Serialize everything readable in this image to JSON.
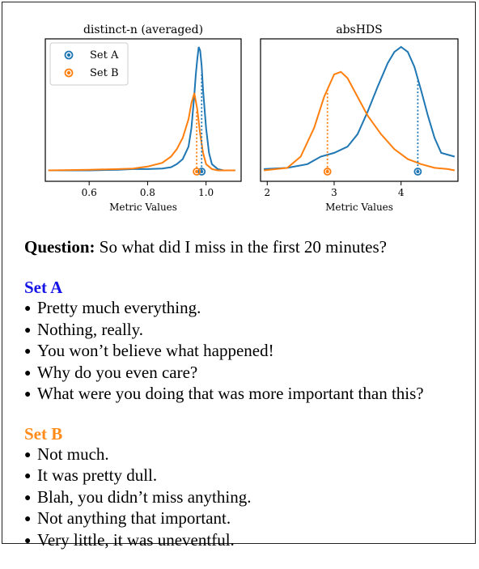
{
  "colors": {
    "set_a": "#1f77b4",
    "set_b": "#ff7f0e",
    "set_a_heading": "#1414e6",
    "set_b_heading": "#ff8c1a"
  },
  "chart_data": [
    {
      "type": "area",
      "title": "distinct-n (averaged)",
      "xlabel": "Metric Values",
      "ylabel": "",
      "xlim": [
        0.45,
        1.12
      ],
      "xticks": [
        "0.6",
        "0.8",
        "1.0"
      ],
      "grid": false,
      "legend_position": "top-left",
      "series": [
        {
          "name": "Set A",
          "color": "#1f77b4",
          "x": [
            0.46,
            0.6,
            0.7,
            0.75,
            0.8,
            0.85,
            0.88,
            0.9,
            0.92,
            0.94,
            0.95,
            0.96,
            0.965,
            0.97,
            0.975,
            0.98,
            0.985,
            0.99,
            1.0,
            1.01,
            1.02,
            1.04,
            1.06,
            1.1
          ],
          "y": [
            0.01,
            0.01,
            0.015,
            0.02,
            0.02,
            0.025,
            0.035,
            0.06,
            0.1,
            0.2,
            0.35,
            0.62,
            0.78,
            0.9,
            1.0,
            0.97,
            0.85,
            0.65,
            0.35,
            0.15,
            0.06,
            0.02,
            0.01,
            0.01
          ],
          "marker_value": 0.985,
          "marker_density": 0.78
        },
        {
          "name": "Set B",
          "color": "#ff7f0e",
          "x": [
            0.46,
            0.6,
            0.7,
            0.75,
            0.8,
            0.85,
            0.88,
            0.9,
            0.92,
            0.94,
            0.95,
            0.96,
            0.97,
            0.98,
            0.99,
            1.0,
            1.02,
            1.04,
            1.06,
            1.1
          ],
          "y": [
            0.01,
            0.015,
            0.02,
            0.025,
            0.04,
            0.07,
            0.12,
            0.18,
            0.27,
            0.42,
            0.55,
            0.63,
            0.5,
            0.3,
            0.15,
            0.06,
            0.02,
            0.01,
            0.01,
            0.01
          ],
          "marker_value": 0.968,
          "marker_density": 0.48
        }
      ]
    },
    {
      "type": "area",
      "title": "absHDS",
      "xlabel": "Metric Values",
      "ylabel": "",
      "xlim": [
        1.9,
        4.85
      ],
      "xticks": [
        "2",
        "3",
        "4"
      ],
      "grid": false,
      "series": [
        {
          "name": "Set A",
          "color": "#1f77b4",
          "x": [
            1.95,
            2.3,
            2.6,
            2.8,
            3.0,
            3.2,
            3.35,
            3.5,
            3.65,
            3.8,
            3.9,
            4.0,
            4.1,
            4.2,
            4.3,
            4.4,
            4.5,
            4.6,
            4.8
          ],
          "y": [
            0.02,
            0.03,
            0.06,
            0.12,
            0.15,
            0.2,
            0.3,
            0.48,
            0.68,
            0.87,
            0.96,
            1.0,
            0.96,
            0.84,
            0.65,
            0.45,
            0.27,
            0.15,
            0.12
          ],
          "marker_value": 4.25,
          "marker_density": 0.73
        },
        {
          "name": "Set B",
          "color": "#ff7f0e",
          "x": [
            1.95,
            2.3,
            2.5,
            2.7,
            2.85,
            3.0,
            3.1,
            3.2,
            3.35,
            3.5,
            3.7,
            3.9,
            4.1,
            4.3,
            4.5,
            4.7,
            4.8
          ],
          "y": [
            0.01,
            0.03,
            0.12,
            0.35,
            0.6,
            0.78,
            0.8,
            0.75,
            0.6,
            0.45,
            0.3,
            0.18,
            0.1,
            0.06,
            0.03,
            0.02,
            0.01
          ],
          "marker_value": 2.9,
          "marker_density": 0.66
        }
      ]
    }
  ],
  "question": {
    "label": "Question:",
    "text": "So what did I miss in the first 20 minutes?"
  },
  "set_a": {
    "heading": "Set A",
    "items": [
      "Pretty much everything.",
      "Nothing, really.",
      "You won’t believe what happened!",
      "Why do you even care?",
      "What were you doing that was more important than this?"
    ]
  },
  "set_b": {
    "heading": "Set B",
    "items": [
      "Not much.",
      "It was pretty dull.",
      "Blah, you didn’t miss anything.",
      "Not anything that important.",
      "Very little, it was uneventful."
    ]
  }
}
